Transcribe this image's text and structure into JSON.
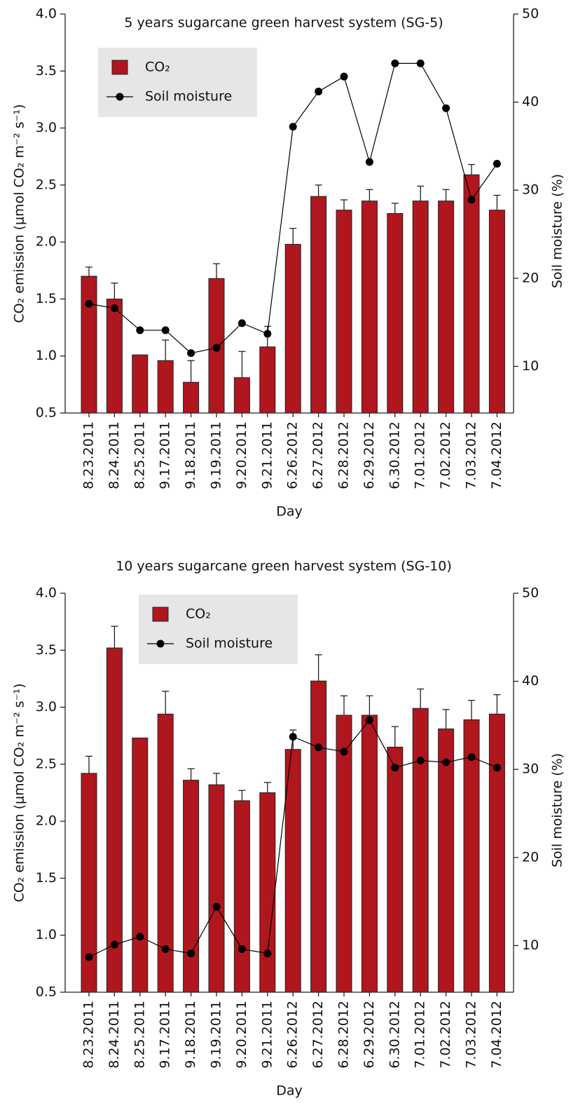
{
  "chart_data": [
    {
      "type": "bar",
      "title": "5 years sugarcane green harvest system (SG-5)",
      "xlabel": "Day",
      "ylabel": "CO₂ emission (μmol CO₂ m⁻² s⁻¹)",
      "y2label": "Soil moisture (%)",
      "categories": [
        "8.23.2011",
        "8.24.2011",
        "8.25.2011",
        "9.17.2011",
        "9.18.2011",
        "9.19.2011",
        "9.20.2011",
        "9.21.2011",
        "6.26.2012",
        "6.27.2012",
        "6.28.2012",
        "6.29.2012",
        "6.30.2012",
        "7.01.2012",
        "7.02.2012",
        "7.03.2012",
        "7.04.2012"
      ],
      "series": [
        {
          "name": "CO₂",
          "color": "#b0161e",
          "values": [
            1.7,
            1.5,
            1.01,
            0.96,
            0.77,
            1.68,
            0.81,
            1.08,
            1.98,
            2.4,
            2.28,
            2.36,
            2.25,
            2.36,
            2.36,
            2.59,
            2.28
          ],
          "errors": [
            0.08,
            0.14,
            null,
            0.18,
            0.19,
            0.13,
            0.23,
            0.18,
            0.14,
            0.1,
            0.09,
            0.1,
            0.09,
            0.13,
            0.1,
            0.09,
            0.13
          ]
        },
        {
          "name": "Soil moisture",
          "color": "#000000",
          "axis": "y2",
          "values": [
            17.1,
            16.6,
            14.1,
            14.1,
            11.5,
            12.1,
            14.9,
            13.7,
            37.2,
            41.2,
            42.9,
            33.2,
            44.4,
            44.4,
            39.3,
            28.9,
            33.0
          ]
        }
      ],
      "ylim": [
        0.5,
        4.0
      ],
      "yticks": [
        0.5,
        {
          "value": 1,
          "label": "1.0"
        },
        1.5,
        {
          "value": 2,
          "label": "2.0"
        },
        2.5,
        {
          "value": 3,
          "label": "3.0"
        },
        3.5,
        {
          "value": 4,
          "label": "4.0"
        }
      ],
      "y2lim": [
        4.7,
        50
      ],
      "y2ticks": [
        10,
        20,
        30,
        40,
        50
      ],
      "legend": "upper left"
    },
    {
      "type": "bar",
      "title": "10 years sugarcane green harvest system (SG-10)",
      "xlabel": "Day",
      "ylabel": "CO₂ emission (μmol CO₂ m⁻² s⁻¹)",
      "y2label": "Soil moisture (%)",
      "categories": [
        "8.23.2011",
        "8.24.2011",
        "8.25.2011",
        "9.17.2011",
        "9.18.2011",
        "9.19.2011",
        "9.20.2011",
        "9.21.2011",
        "6.26.2012",
        "6.27.2012",
        "6.28.2012",
        "6.29.2012",
        "6.30.2012",
        "7.01.2012",
        "7.02.2012",
        "7.03.2012",
        "7.04.2012"
      ],
      "series": [
        {
          "name": "CO₂",
          "color": "#b0161e",
          "values": [
            2.42,
            3.52,
            2.73,
            2.94,
            2.36,
            2.32,
            2.18,
            2.25,
            2.63,
            3.23,
            2.93,
            2.93,
            2.65,
            2.99,
            2.81,
            2.89,
            2.94
          ],
          "errors": [
            0.15,
            0.19,
            null,
            0.2,
            0.1,
            0.1,
            0.09,
            0.09,
            0.17,
            0.23,
            0.17,
            0.17,
            0.18,
            0.17,
            0.17,
            0.17,
            0.17
          ]
        },
        {
          "name": "Soil moisture",
          "color": "#000000",
          "axis": "y2",
          "values": [
            8.7,
            10.1,
            11.0,
            9.6,
            9.1,
            14.4,
            9.6,
            9.1,
            33.7,
            32.5,
            32.0,
            35.6,
            30.2,
            31.0,
            30.8,
            31.4,
            30.2
          ]
        }
      ],
      "ylim": [
        0.5,
        4.0
      ],
      "yticks": [
        0.5,
        {
          "value": 1,
          "label": "1.0"
        },
        1.5,
        {
          "value": 2,
          "label": "2.0"
        },
        2.5,
        {
          "value": 3,
          "label": "3.0"
        },
        3.5,
        {
          "value": 4,
          "label": "4.0"
        }
      ],
      "y2lim": [
        4.7,
        50
      ],
      "y2ticks": [
        10,
        20,
        30,
        40,
        50
      ],
      "legend": "upper center"
    }
  ]
}
